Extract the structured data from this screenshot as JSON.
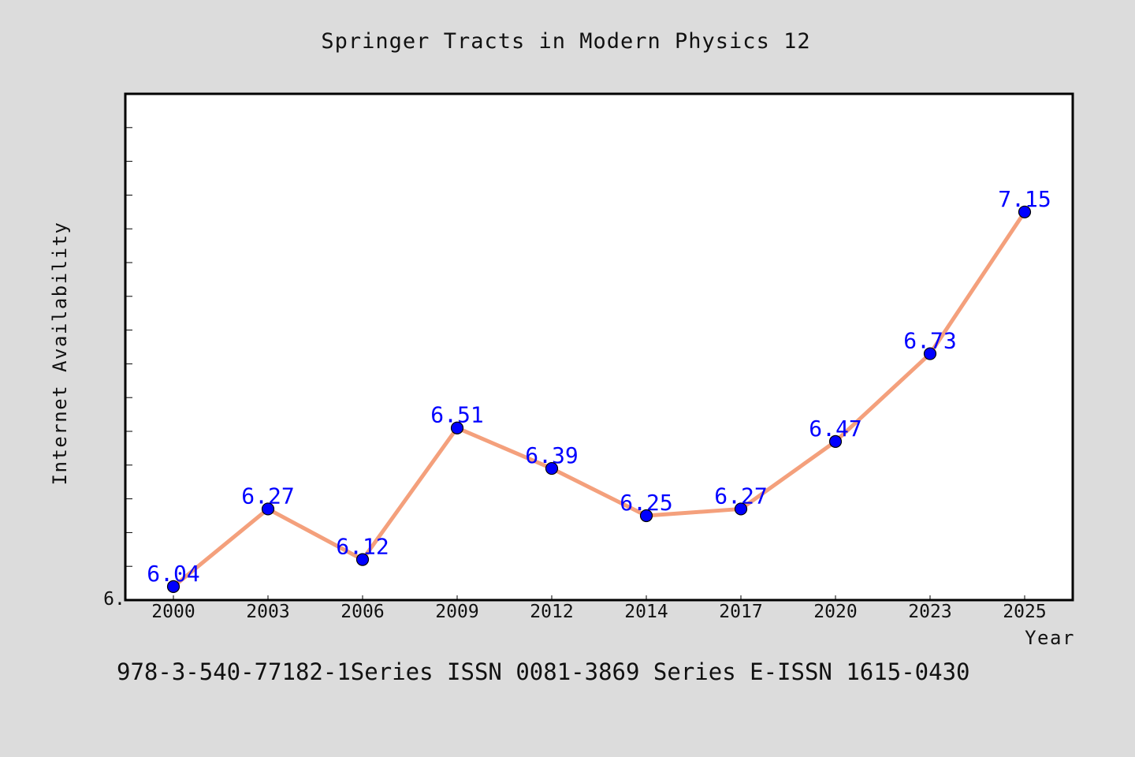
{
  "chart_data": {
    "type": "line",
    "title": "Springer Tracts in Modern Physics 12",
    "xlabel": "Year",
    "ylabel": "Internet Availability",
    "categories": [
      "2000",
      "2003",
      "2006",
      "2009",
      "2012",
      "2014",
      "2017",
      "2020",
      "2023",
      "2025"
    ],
    "series": [
      {
        "values": [
          6.04,
          6.27,
          6.12,
          6.51,
          6.39,
          6.25,
          6.27,
          6.47,
          6.73,
          7.15
        ],
        "data_labels": [
          "6.04",
          "6.27",
          "6.12",
          "6.51",
          "6.39",
          "6.25",
          "6.27",
          "6.47",
          "6.73",
          "7.15"
        ],
        "line_color": "#f4a07c",
        "marker_color": "#0000ff"
      }
    ],
    "ylim": [
      6.0,
      7.5
    ],
    "y_tick_label": "6.",
    "grid": false,
    "legend": "none"
  },
  "footer": {
    "note": "978-3-540-77182-1Series ISSN 0081-3869 Series E-ISSN 1615-0430"
  },
  "colors": {
    "background": "#dcdcdc",
    "plot_background": "#ffffff",
    "axes": "#000000"
  }
}
